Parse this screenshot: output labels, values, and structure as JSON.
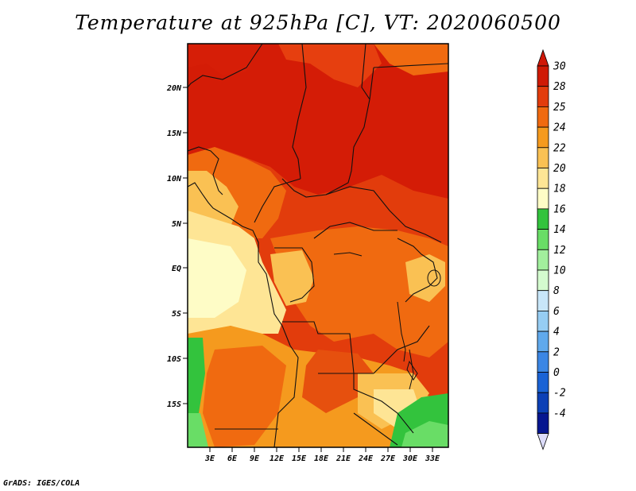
{
  "title": "Temperature at 925hPa [C], VT: 2020060500",
  "credit": "GrADS: IGES/COLA",
  "map": {
    "lat_ticks": [
      "20N",
      "15N",
      "10N",
      "5N",
      "EQ",
      "5S",
      "10S",
      "15S"
    ],
    "lon_ticks": [
      "3E",
      "6E",
      "9E",
      "12E",
      "15E",
      "18E",
      "21E",
      "24E",
      "27E",
      "30E",
      "33E"
    ]
  },
  "colorbar": {
    "labels": [
      "30",
      "28",
      "25",
      "24",
      "22",
      "20",
      "18",
      "16",
      "14",
      "12",
      "10",
      "8",
      "6",
      "4",
      "2",
      "0",
      "-2",
      "-4"
    ],
    "colors": [
      "#cf1a05",
      "#e23c0c",
      "#f06a10",
      "#f59a1e",
      "#fac153",
      "#fee595",
      "#fefcc6",
      "#33c33d",
      "#69dd66",
      "#a2ef9d",
      "#d4fbcf",
      "#c8e6f9",
      "#96cdf3",
      "#60a9ec",
      "#3b86e4",
      "#1a63d5",
      "#0c40b6",
      "#061690"
    ],
    "top_arrow_color": "#d01808",
    "bottom_arrow_color": "#dcdcfa"
  }
}
